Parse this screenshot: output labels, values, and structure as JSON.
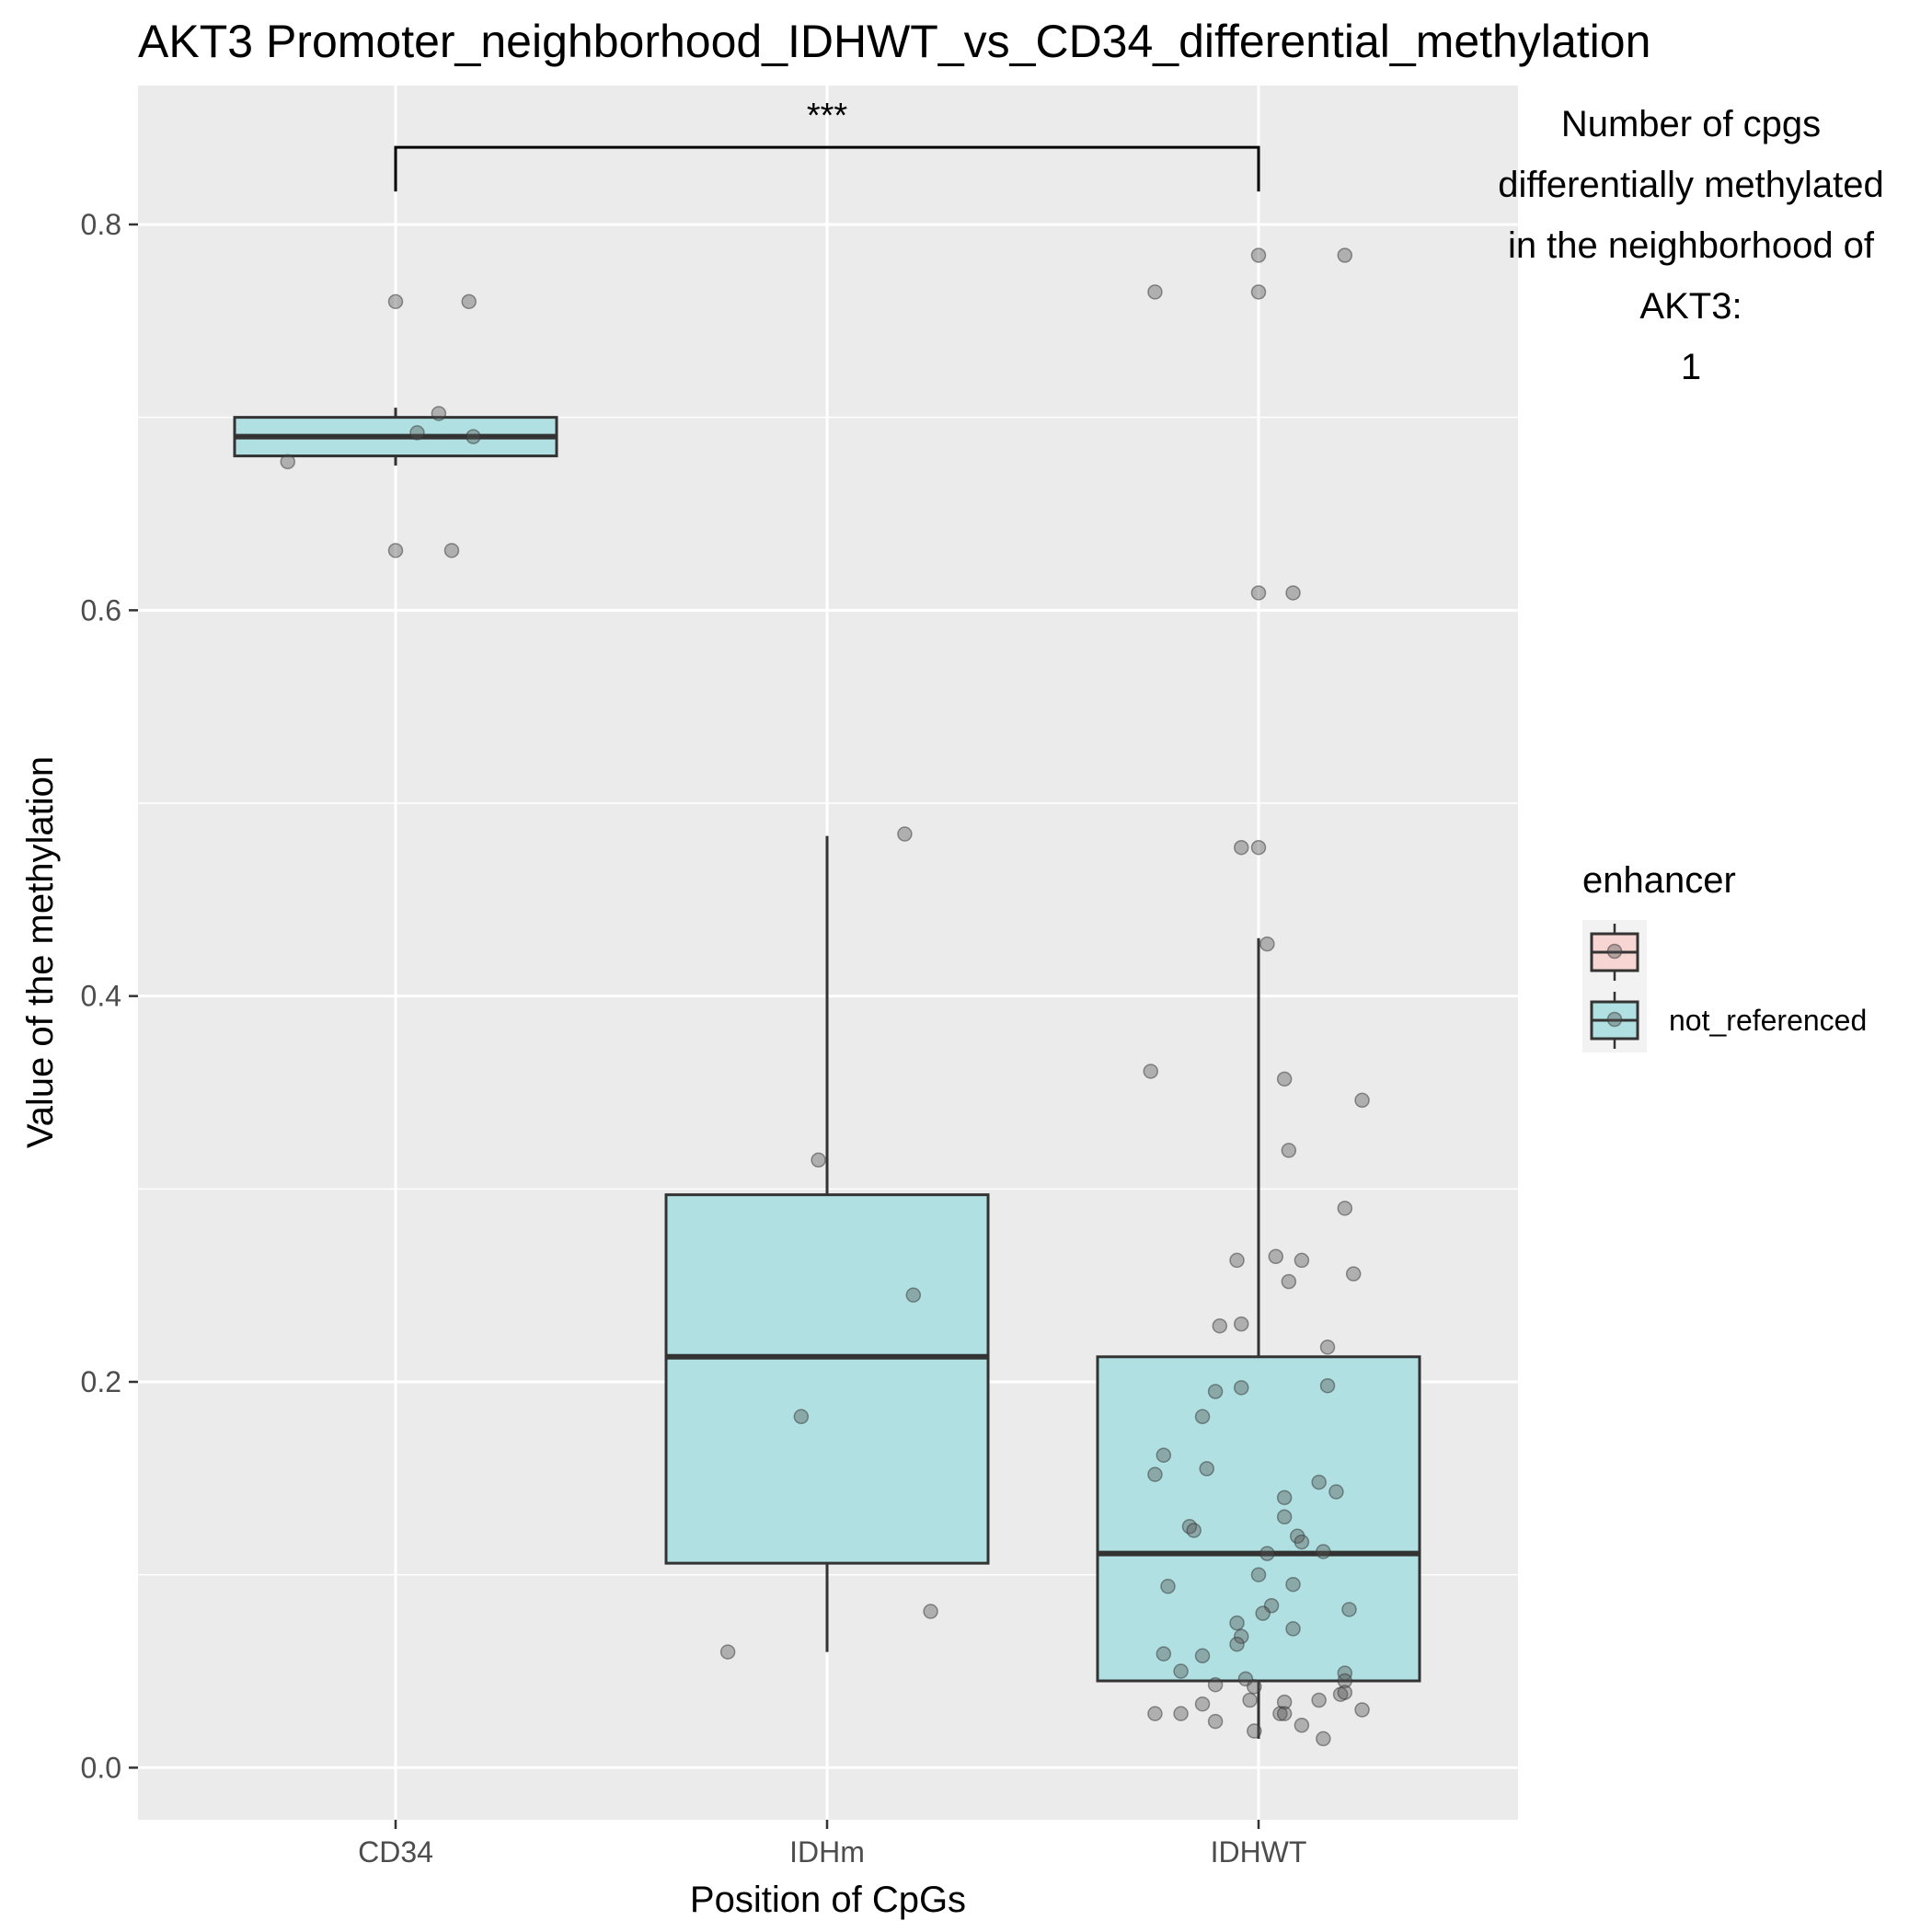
{
  "chart_data": {
    "type": "box",
    "title": "AKT3 Promoter_neighborhood_IDHWT_vs_CD34_differential_methylation",
    "xlabel": "Position of CpGs",
    "ylabel": "Value of the methylation",
    "categories": [
      "CD34",
      "IDHm",
      "IDHWT"
    ],
    "ylim": [
      -0.027,
      0.872
    ],
    "yticks": [
      0.0,
      0.2,
      0.4,
      0.6,
      0.8
    ],
    "ytick_labels": [
      "0.0",
      "0.2",
      "0.4",
      "0.6",
      "0.8"
    ],
    "grid": true,
    "panel_background": "#EBEBEB",
    "box_fill": "#B0E0E2",
    "legend": {
      "title": "enhancer",
      "position": "right",
      "entries": [
        {
          "label": "",
          "fill": "#F6D5D2"
        },
        {
          "label": "not_referenced",
          "fill": "#B0E0E2"
        }
      ]
    },
    "annotation_lines": [
      "Number of cpgs",
      "differentially methylated",
      "in the neighborhood of",
      "AKT3:",
      "1"
    ],
    "significance": {
      "from": "CD34",
      "to": "IDHWT",
      "label": "***",
      "y": 0.84
    },
    "boxes": [
      {
        "category": "CD34",
        "q1": 0.68,
        "median": 0.69,
        "q3": 0.7,
        "whisker_low": 0.675,
        "whisker_high": 0.705
      },
      {
        "category": "IDHm",
        "q1": 0.106,
        "median": 0.213,
        "q3": 0.297,
        "whisker_low": 0.06,
        "whisker_high": 0.483
      },
      {
        "category": "IDHWT",
        "q1": 0.045,
        "median": 0.111,
        "q3": 0.213,
        "whisker_low": 0.015,
        "whisker_high": 0.43
      }
    ],
    "points": [
      {
        "category": "CD34",
        "jitter": 0.0,
        "y": 0.76
      },
      {
        "category": "CD34",
        "jitter": 0.17,
        "y": 0.76
      },
      {
        "category": "CD34",
        "jitter": 0.1,
        "y": 0.702
      },
      {
        "category": "CD34",
        "jitter": 0.05,
        "y": 0.692
      },
      {
        "category": "CD34",
        "jitter": 0.18,
        "y": 0.69
      },
      {
        "category": "CD34",
        "jitter": -0.25,
        "y": 0.677
      },
      {
        "category": "CD34",
        "jitter": 0.0,
        "y": 0.631
      },
      {
        "category": "CD34",
        "jitter": 0.13,
        "y": 0.631
      },
      {
        "category": "IDHm",
        "jitter": 0.18,
        "y": 0.484
      },
      {
        "category": "IDHm",
        "jitter": -0.02,
        "y": 0.315
      },
      {
        "category": "IDHm",
        "jitter": 0.2,
        "y": 0.245
      },
      {
        "category": "IDHm",
        "jitter": -0.06,
        "y": 0.182
      },
      {
        "category": "IDHm",
        "jitter": 0.24,
        "y": 0.081
      },
      {
        "category": "IDHm",
        "jitter": -0.23,
        "y": 0.06
      },
      {
        "category": "IDHWT",
        "jitter": 0.0,
        "y": 0.784
      },
      {
        "category": "IDHWT",
        "jitter": 0.2,
        "y": 0.784
      },
      {
        "category": "IDHWT",
        "jitter": -0.24,
        "y": 0.765
      },
      {
        "category": "IDHWT",
        "jitter": 0.0,
        "y": 0.765
      },
      {
        "category": "IDHWT",
        "jitter": 0.0,
        "y": 0.609
      },
      {
        "category": "IDHWT",
        "jitter": 0.08,
        "y": 0.609
      },
      {
        "category": "IDHWT",
        "jitter": -0.04,
        "y": 0.477
      },
      {
        "category": "IDHWT",
        "jitter": 0.0,
        "y": 0.477
      },
      {
        "category": "IDHWT",
        "jitter": 0.02,
        "y": 0.427
      },
      {
        "category": "IDHWT",
        "jitter": -0.25,
        "y": 0.361
      },
      {
        "category": "IDHWT",
        "jitter": 0.06,
        "y": 0.357
      },
      {
        "category": "IDHWT",
        "jitter": 0.24,
        "y": 0.346
      },
      {
        "category": "IDHWT",
        "jitter": 0.07,
        "y": 0.32
      },
      {
        "category": "IDHWT",
        "jitter": 0.2,
        "y": 0.29
      },
      {
        "category": "IDHWT",
        "jitter": -0.05,
        "y": 0.263
      },
      {
        "category": "IDHWT",
        "jitter": 0.04,
        "y": 0.265
      },
      {
        "category": "IDHWT",
        "jitter": 0.1,
        "y": 0.263
      },
      {
        "category": "IDHWT",
        "jitter": 0.22,
        "y": 0.256
      },
      {
        "category": "IDHWT",
        "jitter": 0.07,
        "y": 0.252
      },
      {
        "category": "IDHWT",
        "jitter": -0.09,
        "y": 0.229
      },
      {
        "category": "IDHWT",
        "jitter": -0.04,
        "y": 0.23
      },
      {
        "category": "IDHWT",
        "jitter": 0.16,
        "y": 0.218
      },
      {
        "category": "IDHWT",
        "jitter": -0.1,
        "y": 0.195
      },
      {
        "category": "IDHWT",
        "jitter": -0.04,
        "y": 0.197
      },
      {
        "category": "IDHWT",
        "jitter": 0.16,
        "y": 0.198
      },
      {
        "category": "IDHWT",
        "jitter": -0.13,
        "y": 0.182
      },
      {
        "category": "IDHWT",
        "jitter": -0.22,
        "y": 0.162
      },
      {
        "category": "IDHWT",
        "jitter": -0.12,
        "y": 0.155
      },
      {
        "category": "IDHWT",
        "jitter": -0.24,
        "y": 0.152
      },
      {
        "category": "IDHWT",
        "jitter": 0.14,
        "y": 0.148
      },
      {
        "category": "IDHWT",
        "jitter": 0.18,
        "y": 0.143
      },
      {
        "category": "IDHWT",
        "jitter": 0.06,
        "y": 0.14
      },
      {
        "category": "IDHWT",
        "jitter": 0.06,
        "y": 0.13
      },
      {
        "category": "IDHWT",
        "jitter": -0.16,
        "y": 0.125
      },
      {
        "category": "IDHWT",
        "jitter": -0.15,
        "y": 0.123
      },
      {
        "category": "IDHWT",
        "jitter": 0.09,
        "y": 0.12
      },
      {
        "category": "IDHWT",
        "jitter": 0.1,
        "y": 0.117
      },
      {
        "category": "IDHWT",
        "jitter": 0.15,
        "y": 0.112
      },
      {
        "category": "IDHWT",
        "jitter": 0.02,
        "y": 0.111
      },
      {
        "category": "IDHWT",
        "jitter": 0.0,
        "y": 0.1
      },
      {
        "category": "IDHWT",
        "jitter": -0.21,
        "y": 0.094
      },
      {
        "category": "IDHWT",
        "jitter": 0.08,
        "y": 0.095
      },
      {
        "category": "IDHWT",
        "jitter": 0.03,
        "y": 0.084
      },
      {
        "category": "IDHWT",
        "jitter": 0.01,
        "y": 0.08
      },
      {
        "category": "IDHWT",
        "jitter": 0.21,
        "y": 0.082
      },
      {
        "category": "IDHWT",
        "jitter": -0.05,
        "y": 0.075
      },
      {
        "category": "IDHWT",
        "jitter": 0.08,
        "y": 0.072
      },
      {
        "category": "IDHWT",
        "jitter": -0.04,
        "y": 0.068
      },
      {
        "category": "IDHWT",
        "jitter": -0.05,
        "y": 0.064
      },
      {
        "category": "IDHWT",
        "jitter": -0.22,
        "y": 0.059
      },
      {
        "category": "IDHWT",
        "jitter": -0.13,
        "y": 0.058
      },
      {
        "category": "IDHWT",
        "jitter": 0.2,
        "y": 0.049
      },
      {
        "category": "IDHWT",
        "jitter": -0.18,
        "y": 0.05
      },
      {
        "category": "IDHWT",
        "jitter": -0.03,
        "y": 0.046
      },
      {
        "category": "IDHWT",
        "jitter": 0.2,
        "y": 0.045
      },
      {
        "category": "IDHWT",
        "jitter": -0.1,
        "y": 0.043
      },
      {
        "category": "IDHWT",
        "jitter": -0.01,
        "y": 0.042
      },
      {
        "category": "IDHWT",
        "jitter": 0.19,
        "y": 0.038
      },
      {
        "category": "IDHWT",
        "jitter": 0.2,
        "y": 0.039
      },
      {
        "category": "IDHWT",
        "jitter": 0.14,
        "y": 0.035
      },
      {
        "category": "IDHWT",
        "jitter": 0.06,
        "y": 0.034
      },
      {
        "category": "IDHWT",
        "jitter": -0.02,
        "y": 0.035
      },
      {
        "category": "IDHWT",
        "jitter": -0.13,
        "y": 0.033
      },
      {
        "category": "IDHWT",
        "jitter": 0.24,
        "y": 0.03
      },
      {
        "category": "IDHWT",
        "jitter": 0.05,
        "y": 0.028
      },
      {
        "category": "IDHWT",
        "jitter": 0.06,
        "y": 0.028
      },
      {
        "category": "IDHWT",
        "jitter": -0.24,
        "y": 0.028
      },
      {
        "category": "IDHWT",
        "jitter": -0.18,
        "y": 0.028
      },
      {
        "category": "IDHWT",
        "jitter": -0.1,
        "y": 0.024
      },
      {
        "category": "IDHWT",
        "jitter": 0.1,
        "y": 0.022
      },
      {
        "category": "IDHWT",
        "jitter": -0.01,
        "y": 0.019
      },
      {
        "category": "IDHWT",
        "jitter": 0.15,
        "y": 0.015
      }
    ]
  }
}
